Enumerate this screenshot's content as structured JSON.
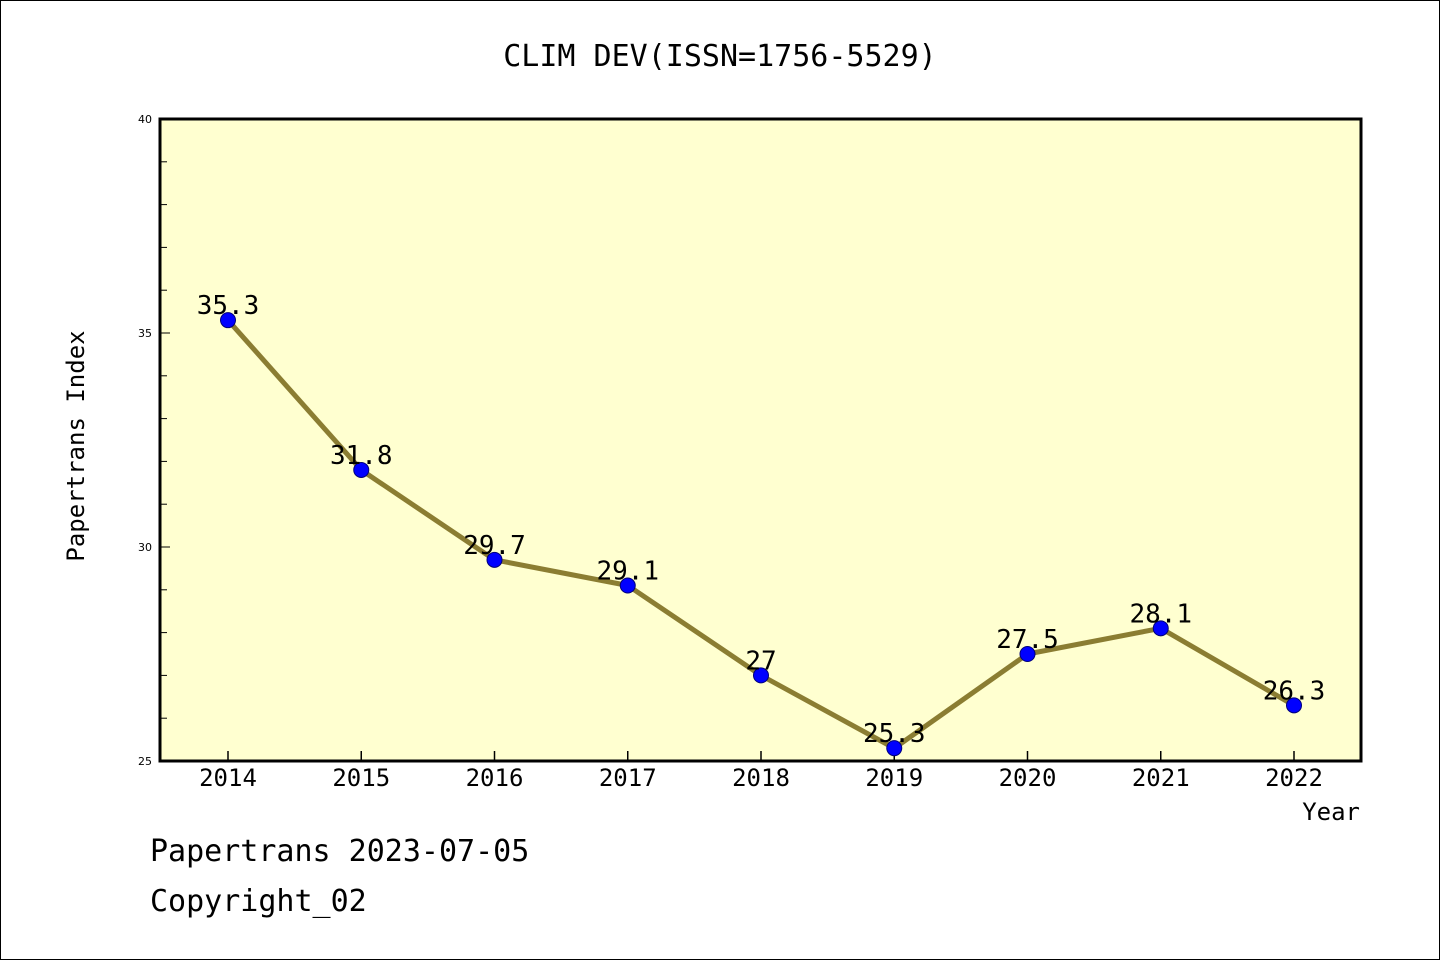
{
  "chart_data": {
    "type": "line",
    "title": "CLIM DEV(ISSN=1756-5529)",
    "xlabel": "Year",
    "ylabel": "Papertrans Index",
    "categories": [
      "2014",
      "2015",
      "2016",
      "2017",
      "2018",
      "2019",
      "2020",
      "2021",
      "2022"
    ],
    "series": [
      {
        "values": [
          35.3,
          31.8,
          29.7,
          29.1,
          27,
          25.3,
          27.5,
          28.1,
          26.3
        ],
        "labels": [
          "35.3",
          "31.8",
          "29.7",
          "29.1",
          "27",
          "25.3",
          "27.5",
          "28.1",
          "26.3"
        ]
      }
    ],
    "ylim": [
      25,
      40
    ],
    "yticks": [
      "25",
      "30",
      "35",
      "40"
    ],
    "grid": false,
    "legend": "none",
    "colors": {
      "plot_background": "#ffffd0",
      "line": "#8b7d32",
      "marker": "#0000ff"
    }
  },
  "footer": {
    "line1": "Papertrans 2023-07-05",
    "line2": "Copyright_02"
  }
}
